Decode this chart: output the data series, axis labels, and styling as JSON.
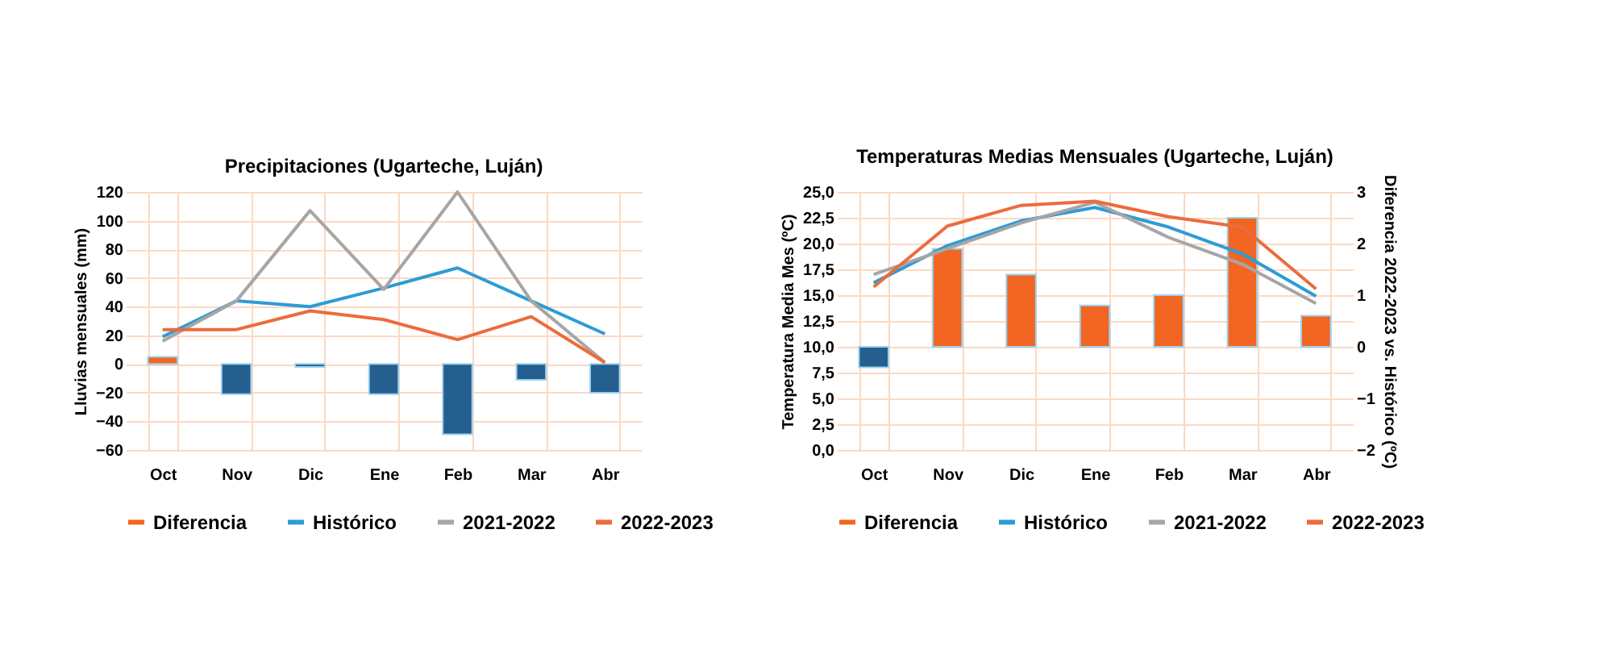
{
  "chart_data": [
    {
      "type": "line",
      "title": "Precipitaciones (Ugarteche, Luján)",
      "ylabel": "Lluvias mensuales (mm)",
      "categories": [
        "Oct",
        "Nov",
        "Dic",
        "Ene",
        "Feb",
        "Mar",
        "Abr"
      ],
      "ylim": [
        -60,
        120
      ],
      "yticks": [
        -60,
        -40,
        -20,
        0,
        20,
        40,
        60,
        80,
        100,
        120
      ],
      "grid": true,
      "legend": "bottom",
      "series": [
        {
          "name": "Diferencia",
          "type": "bar",
          "color": "#f26522",
          "colors": [
            "#f26522",
            "#245f8f",
            "#245f8f",
            "#245f8f",
            "#245f8f",
            "#245f8f",
            "#245f8f"
          ],
          "values": [
            5,
            -21,
            -2,
            -21,
            -49,
            -11,
            -20
          ]
        },
        {
          "name": "Histórico",
          "color": "#2e9bd6",
          "values": [
            19,
            44,
            40,
            53,
            67,
            44,
            21
          ]
        },
        {
          "name": "2021-2022",
          "color": "#a6a6a6",
          "values": [
            16,
            44,
            107,
            52,
            120,
            44,
            1
          ]
        },
        {
          "name": "2022-2023",
          "color": "#ed6b3c",
          "values": [
            24,
            24,
            37,
            31,
            17,
            33,
            1
          ]
        }
      ]
    },
    {
      "type": "line",
      "title": "Temperaturas Medias Mensuales (Ugarteche, Luján)",
      "ylabel": "Temperatura Media Mes (ºC)",
      "y2label": "Diferencia 2022-2023 vs. Histórico (ºC)",
      "categories": [
        "Oct",
        "Nov",
        "Dic",
        "Ene",
        "Feb",
        "Mar",
        "Abr"
      ],
      "ylim": [
        0,
        25
      ],
      "yticks": [
        {
          "value": 0,
          "label": "0,0"
        },
        {
          "value": 2.5,
          "label": "2,5"
        },
        {
          "value": 5,
          "label": "5,0"
        },
        {
          "value": 7.5,
          "label": "7,5"
        },
        {
          "value": 10,
          "label": "10,0"
        },
        {
          "value": 12.5,
          "label": "12,5"
        },
        {
          "value": 15,
          "label": "15,0"
        },
        {
          "value": 17.5,
          "label": "17,5"
        },
        {
          "value": 20,
          "label": "20,0"
        },
        {
          "value": 22.5,
          "label": "22,5"
        },
        {
          "value": 25,
          "label": "25,0"
        }
      ],
      "y2lim": [
        -2,
        3
      ],
      "y2ticks": [
        -2,
        -1,
        0,
        1,
        2,
        3
      ],
      "grid": true,
      "legend": "bottom",
      "series": [
        {
          "name": "Diferencia",
          "type": "bar",
          "axis": "y2",
          "color": "#f26522",
          "colors": [
            "#245f8f",
            "#f26522",
            "#f26522",
            "#f26522",
            "#f26522",
            "#f26522",
            "#f26522"
          ],
          "values": [
            -0.4,
            1.9,
            1.4,
            0.8,
            1.0,
            2.5,
            0.6
          ]
        },
        {
          "name": "Histórico",
          "color": "#2e9bd6",
          "values": [
            16.2,
            19.8,
            22.2,
            23.5,
            21.6,
            19.0,
            14.9
          ]
        },
        {
          "name": "2021-2022",
          "color": "#a6a6a6",
          "values": [
            17.0,
            19.5,
            22.0,
            24.0,
            20.6,
            18.0,
            14.2
          ]
        },
        {
          "name": "2022-2023",
          "color": "#ed6b3c",
          "values": [
            15.8,
            21.7,
            23.7,
            24.1,
            22.6,
            21.6,
            15.6
          ]
        }
      ]
    }
  ]
}
